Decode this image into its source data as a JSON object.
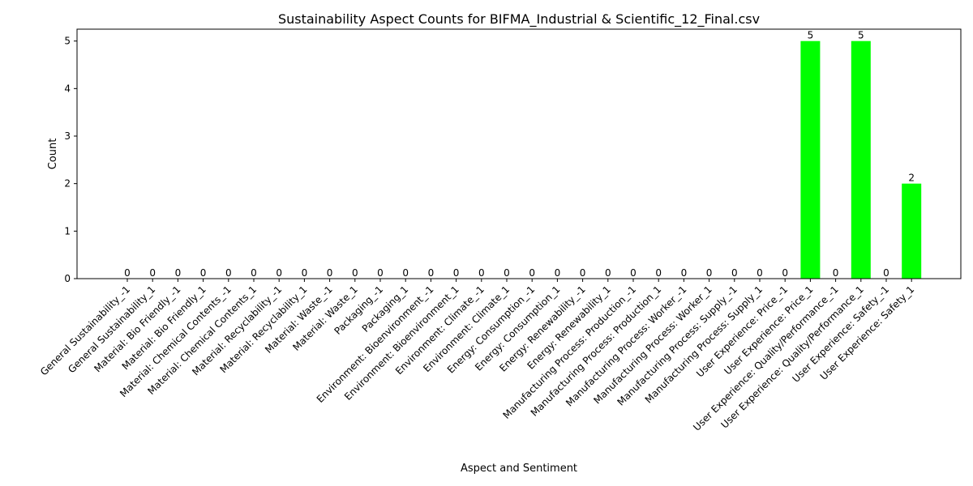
{
  "chart_data": {
    "type": "bar",
    "title": "Sustainability Aspect Counts for BIFMA_Industrial & Scientific_12_Final.csv",
    "xlabel": "Aspect and Sentiment",
    "ylabel": "Count",
    "ylim": [
      0,
      5.25
    ],
    "yticks": [
      0,
      1,
      2,
      3,
      4,
      5
    ],
    "grid": false,
    "bar_color": "#00ff00",
    "categories": [
      "General Sustainability_-1",
      "General Sustainability_1",
      "Material: Bio Friendly_-1",
      "Material: Bio Friendly_1",
      "Material: Chemical Contents_-1",
      "Material: Chemical Contents_1",
      "Material: Recyclability_-1",
      "Material: Recyclability_1",
      "Material: Waste_-1",
      "Material: Waste_1",
      "Packaging_-1",
      "Packaging_1",
      "Environment: Bioenvironment_-1",
      "Environment: Bioenvironment_1",
      "Environment: Climate_-1",
      "Environment: Climate_1",
      "Energy: Consumption_-1",
      "Energy: Consumption_1",
      "Energy: Renewability_-1",
      "Energy: Renewability_1",
      "Manufacturing Process: Production_-1",
      "Manufacturing Process: Production_1",
      "Manufacturing Process: Worker_-1",
      "Manufacturing Process: Worker_1",
      "Manufacturing Process: Supply_-1",
      "Manufacturing Process: Supply_1",
      "User Experience: Price_-1",
      "User Experience: Price_1",
      "User Experience: Quality/Performance_-1",
      "User Experience: Quality/Performance_1",
      "User Experience: Safety_-1",
      "User Experience: Safety_1"
    ],
    "values": [
      0,
      0,
      0,
      0,
      0,
      0,
      0,
      0,
      0,
      0,
      0,
      0,
      0,
      0,
      0,
      0,
      0,
      0,
      0,
      0,
      0,
      0,
      0,
      0,
      0,
      0,
      0,
      5,
      0,
      5,
      0,
      2
    ]
  }
}
